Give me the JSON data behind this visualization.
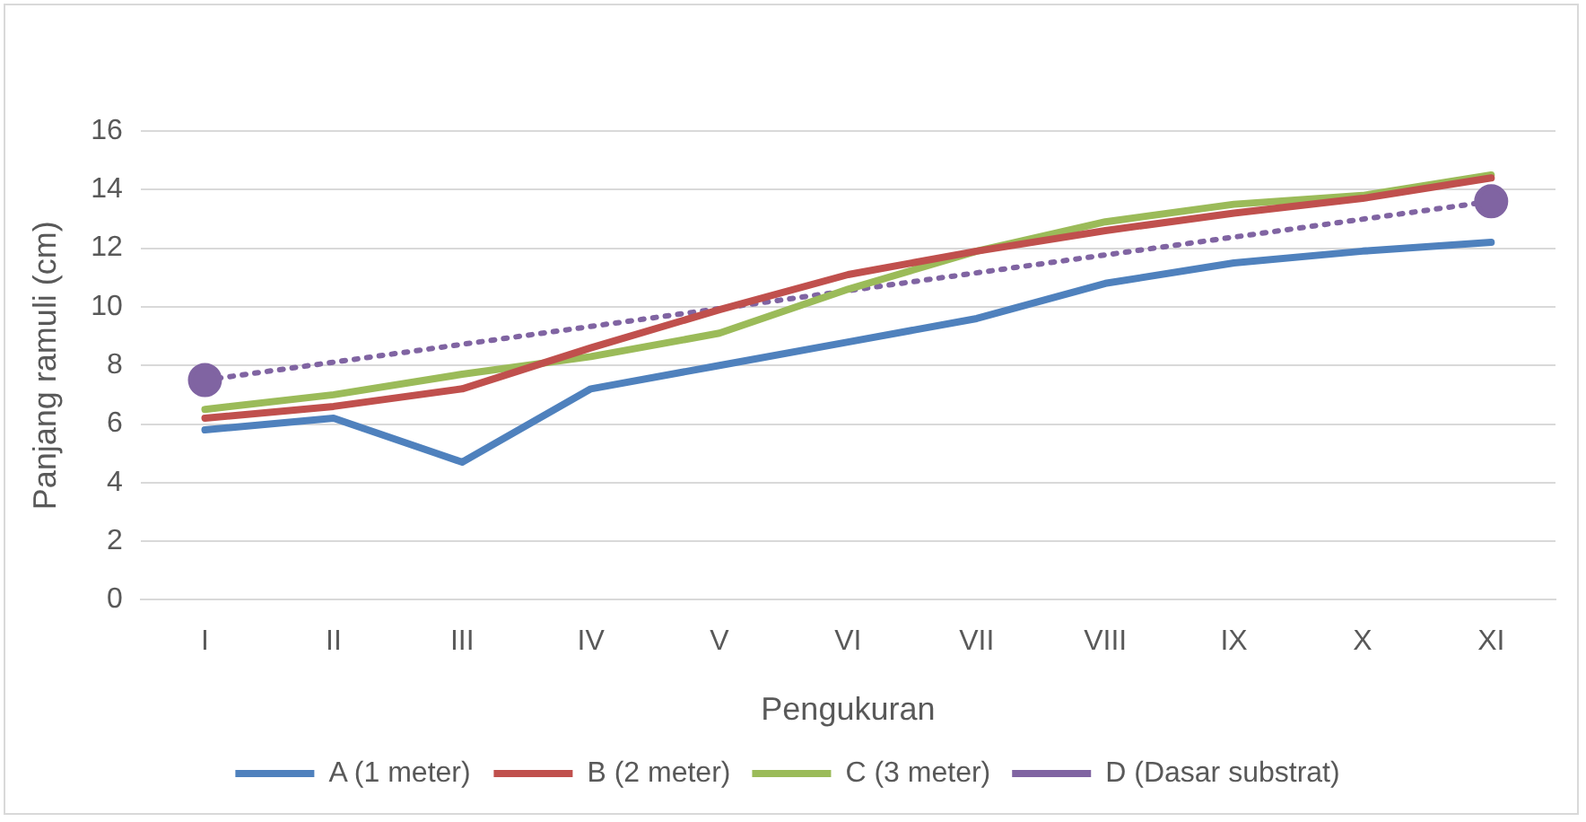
{
  "chart_data": {
    "type": "line",
    "xlabel": "Pengukuran",
    "ylabel": "Panjang ramuli (cm)",
    "categories": [
      "I",
      "II",
      "III",
      "IV",
      "V",
      "VI",
      "VII",
      "VIII",
      "IX",
      "X",
      "XI"
    ],
    "series": [
      {
        "name": "A (1 meter)",
        "color": "#4f81bd",
        "values": [
          5.8,
          6.2,
          4.7,
          7.2,
          8.0,
          8.8,
          9.6,
          10.8,
          11.5,
          11.9,
          12.2
        ],
        "marker": "none"
      },
      {
        "name": "B (2 meter)",
        "color": "#c0504d",
        "values": [
          6.2,
          6.6,
          7.2,
          8.6,
          9.9,
          11.1,
          11.9,
          12.6,
          13.2,
          13.7,
          14.4
        ],
        "marker": "none"
      },
      {
        "name": "C (3 meter)",
        "color": "#9bbb59",
        "values": [
          6.5,
          7.0,
          7.7,
          8.3,
          9.1,
          10.6,
          11.9,
          12.9,
          13.5,
          13.8,
          14.5
        ],
        "marker": "none"
      },
      {
        "name": "D (Dasar substrat)",
        "color": "#8064a2",
        "values": [
          7.5,
          null,
          null,
          null,
          null,
          null,
          null,
          null,
          null,
          null,
          13.6
        ],
        "marker": "circle",
        "line_style": "dotted"
      }
    ],
    "ylim": [
      0,
      16
    ],
    "yticks": [
      0,
      2,
      4,
      6,
      8,
      10,
      12,
      14,
      16
    ],
    "grid": "y",
    "legend": "bottom"
  }
}
